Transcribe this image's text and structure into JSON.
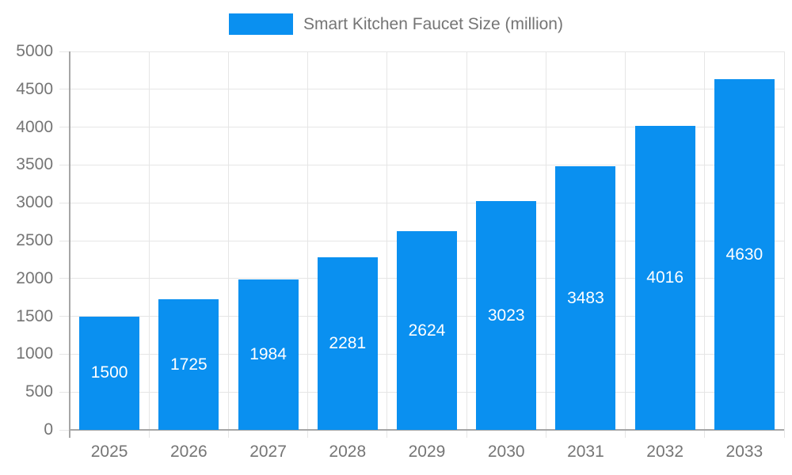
{
  "legend": {
    "label": "Smart Kitchen Faucet Size (million)"
  },
  "chart_data": {
    "type": "bar",
    "title": "Smart Kitchen Faucet Size (million)",
    "categories": [
      "2025",
      "2026",
      "2027",
      "2028",
      "2029",
      "2030",
      "2031",
      "2032",
      "2033"
    ],
    "values": [
      1500,
      1725,
      1984,
      2281,
      2624,
      3023,
      3483,
      4016,
      4630
    ],
    "xlabel": "",
    "ylabel": "",
    "ylim": [
      0,
      5000
    ],
    "ytick_step": 500,
    "grid": true,
    "legend_position": "top-center",
    "value_labels": "inside-center-white",
    "colors": {
      "bar": "#0a90f0",
      "grid": "#e6e6e6",
      "axis": "#a6a6a6",
      "tick_text": "#757575",
      "value_label": "#ffffff"
    }
  }
}
